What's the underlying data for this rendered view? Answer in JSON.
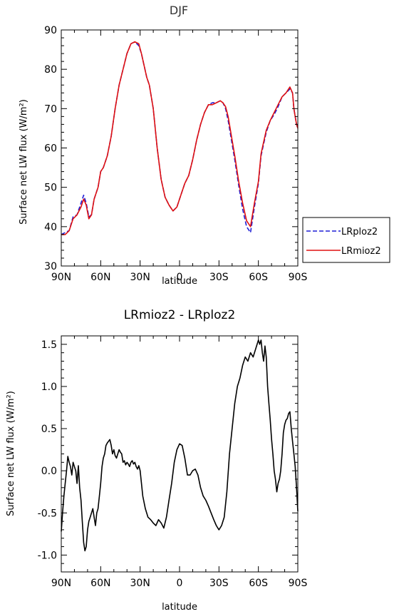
{
  "chart_data": [
    {
      "type": "line",
      "title": "DJF",
      "xlabel": "latitude",
      "ylabel": "Surface net LW flux (W/m²)",
      "xlim": [
        90,
        -90
      ],
      "ylim": [
        30,
        90
      ],
      "yticks": [
        30,
        40,
        50,
        60,
        70,
        80,
        90
      ],
      "yticklabels": [
        "30",
        "40",
        "50",
        "60",
        "70",
        "80",
        "90"
      ],
      "xticks": [
        90,
        60,
        30,
        0,
        -30,
        -60,
        -90
      ],
      "xticklabels": [
        "90N",
        "60N",
        "30N",
        "0",
        "30S",
        "60S",
        "90S"
      ],
      "grid": false,
      "legend_position": "right-outside",
      "series": [
        {
          "name": "LRploz2",
          "color": "#1f1fd6",
          "dash": "dashed",
          "x": [
            90,
            87,
            84,
            81,
            78,
            75,
            73,
            71,
            69,
            67,
            65,
            62,
            60,
            58,
            55,
            52,
            49,
            46,
            43,
            40,
            37,
            34,
            31,
            29,
            27,
            25,
            23,
            20,
            17,
            14,
            11,
            8,
            5,
            2,
            -1,
            -4,
            -7,
            -10,
            -13,
            -16,
            -19,
            -22,
            -25,
            -28,
            -31,
            -33,
            -35,
            -37,
            -39,
            -42,
            -45,
            -48,
            -51,
            -54,
            -57,
            -60,
            -62,
            -64,
            -66,
            -69,
            -72,
            -75,
            -78,
            -81,
            -84,
            -86,
            -87,
            -88,
            -89,
            -90
          ],
          "y": [
            38,
            38.5,
            39,
            42.5,
            43,
            46,
            48,
            46,
            42.5,
            43,
            47,
            50,
            54,
            55,
            58,
            63,
            70,
            76,
            80,
            84,
            86.5,
            87,
            86,
            84,
            81,
            78,
            76,
            70,
            60,
            52,
            47.5,
            45.5,
            44,
            45,
            48,
            51,
            53,
            57,
            62,
            66,
            69,
            71,
            71.5,
            71.5,
            72,
            71.5,
            70,
            67,
            63,
            57,
            50.5,
            44.5,
            40,
            38.5,
            45,
            51,
            58,
            61,
            64,
            67,
            68.5,
            70.5,
            73,
            74,
            75,
            74,
            70,
            68,
            66,
            65
          ]
        },
        {
          "name": "LRmioz2",
          "color": "#e01010",
          "dash": "solid",
          "x": [
            90,
            87,
            84,
            81,
            78,
            75,
            73,
            71,
            69,
            67,
            65,
            62,
            60,
            58,
            55,
            52,
            49,
            46,
            43,
            40,
            37,
            34,
            31,
            29,
            27,
            25,
            23,
            20,
            17,
            14,
            11,
            8,
            5,
            2,
            -1,
            -4,
            -7,
            -10,
            -13,
            -16,
            -19,
            -22,
            -25,
            -28,
            -31,
            -33,
            -35,
            -37,
            -39,
            -42,
            -45,
            -48,
            -51,
            -54,
            -57,
            -60,
            -62,
            -64,
            -66,
            -69,
            -72,
            -75,
            -78,
            -81,
            -84,
            -86,
            -87,
            -88,
            -89,
            -90
          ],
          "y": [
            38,
            38,
            39,
            42,
            43,
            45,
            47,
            45.5,
            42,
            43,
            47,
            50,
            54,
            55,
            58,
            63,
            70,
            76,
            80,
            84,
            86.5,
            87,
            86.5,
            84,
            81,
            78,
            76,
            70,
            60,
            52,
            47.5,
            45.5,
            44,
            45,
            48,
            51,
            53,
            57,
            62,
            66,
            69,
            71,
            71,
            71.5,
            72,
            71.5,
            70.5,
            68,
            64,
            58,
            51.5,
            46,
            41.5,
            40,
            46,
            51.5,
            58.5,
            61.5,
            64.5,
            67,
            69,
            71,
            73,
            74,
            75.5,
            74,
            70,
            68,
            66,
            65
          ]
        }
      ]
    },
    {
      "type": "line",
      "title": "LRmioz2 - LRploz2",
      "xlabel": "latitude",
      "ylabel": "Surface net LW flux (W/m²)",
      "xlim": [
        90,
        -90
      ],
      "ylim": [
        -1.2,
        1.6
      ],
      "yticks": [
        -1.0,
        -0.5,
        0.0,
        0.5,
        1.0,
        1.5
      ],
      "yticklabels": [
        "-1.0",
        "-0.5",
        "0.0",
        "0.5",
        "1.0",
        "1.5"
      ],
      "xticks": [
        90,
        60,
        30,
        0,
        -30,
        -60,
        -90
      ],
      "xticklabels": [
        "90N",
        "60N",
        "30N",
        "0",
        "30S",
        "60S",
        "90S"
      ],
      "grid": false,
      "series": [
        {
          "color": "#000000",
          "dash": "solid",
          "x": [
            90,
            89,
            88,
            87,
            86,
            85,
            84,
            83,
            82,
            81,
            80,
            79,
            78,
            77,
            76,
            75,
            74,
            73,
            72,
            71,
            70,
            69,
            68,
            67,
            66,
            65,
            64,
            63,
            62,
            61,
            60,
            59,
            58,
            57,
            56,
            55,
            54,
            53,
            52,
            51,
            50,
            49,
            48,
            47,
            46,
            45,
            44,
            43,
            42,
            41,
            40,
            39,
            38,
            37,
            36,
            35,
            34,
            33,
            32,
            31,
            30,
            28,
            26,
            24,
            22,
            20,
            18,
            16,
            14,
            12,
            10,
            8,
            6,
            4,
            2,
            0,
            -2,
            -4,
            -6,
            -8,
            -10,
            -12,
            -14,
            -16,
            -18,
            -20,
            -22,
            -24,
            -26,
            -28,
            -30,
            -32,
            -34,
            -36,
            -38,
            -40,
            -42,
            -44,
            -46,
            -48,
            -50,
            -52,
            -54,
            -56,
            -58,
            -60,
            -61,
            -62,
            -63,
            -64,
            -65,
            -66,
            -67,
            -68,
            -69,
            -70,
            -71,
            -72,
            -73,
            -74,
            -75,
            -76,
            -77,
            -78,
            -79,
            -80,
            -81,
            -82,
            -83,
            -84,
            -85,
            -86,
            -87,
            -88,
            -89,
            -90
          ],
          "y": [
            -0.72,
            -0.5,
            -0.3,
            -0.15,
            0.0,
            0.17,
            0.1,
            0.05,
            -0.05,
            0.1,
            0.05,
            0.0,
            -0.15,
            0.06,
            -0.2,
            -0.35,
            -0.6,
            -0.85,
            -0.95,
            -0.9,
            -0.7,
            -0.6,
            -0.55,
            -0.5,
            -0.45,
            -0.55,
            -0.65,
            -0.5,
            -0.45,
            -0.3,
            -0.15,
            0.05,
            0.15,
            0.2,
            0.3,
            0.33,
            0.35,
            0.37,
            0.3,
            0.2,
            0.25,
            0.18,
            0.15,
            0.2,
            0.25,
            0.22,
            0.2,
            0.1,
            0.12,
            0.07,
            0.1,
            0.08,
            0.05,
            0.1,
            0.12,
            0.08,
            0.1,
            0.05,
            0.02,
            0.06,
            0.0,
            -0.3,
            -0.45,
            -0.55,
            -0.58,
            -0.62,
            -0.65,
            -0.58,
            -0.62,
            -0.68,
            -0.55,
            -0.35,
            -0.15,
            0.1,
            0.25,
            0.32,
            0.3,
            0.15,
            -0.05,
            -0.05,
            0.0,
            0.02,
            -0.05,
            -0.2,
            -0.3,
            -0.35,
            -0.42,
            -0.5,
            -0.58,
            -0.65,
            -0.7,
            -0.65,
            -0.55,
            -0.25,
            0.2,
            0.5,
            0.8,
            1.0,
            1.1,
            1.25,
            1.35,
            1.3,
            1.4,
            1.35,
            1.45,
            1.55,
            1.5,
            1.55,
            1.4,
            1.3,
            1.48,
            1.35,
            1.0,
            0.8,
            0.6,
            0.38,
            0.2,
            0.0,
            -0.1,
            -0.25,
            -0.15,
            -0.1,
            0.0,
            0.2,
            0.45,
            0.55,
            0.6,
            0.62,
            0.68,
            0.7,
            0.5,
            0.35,
            0.2,
            0.05,
            -0.2,
            -0.48
          ]
        }
      ]
    }
  ]
}
